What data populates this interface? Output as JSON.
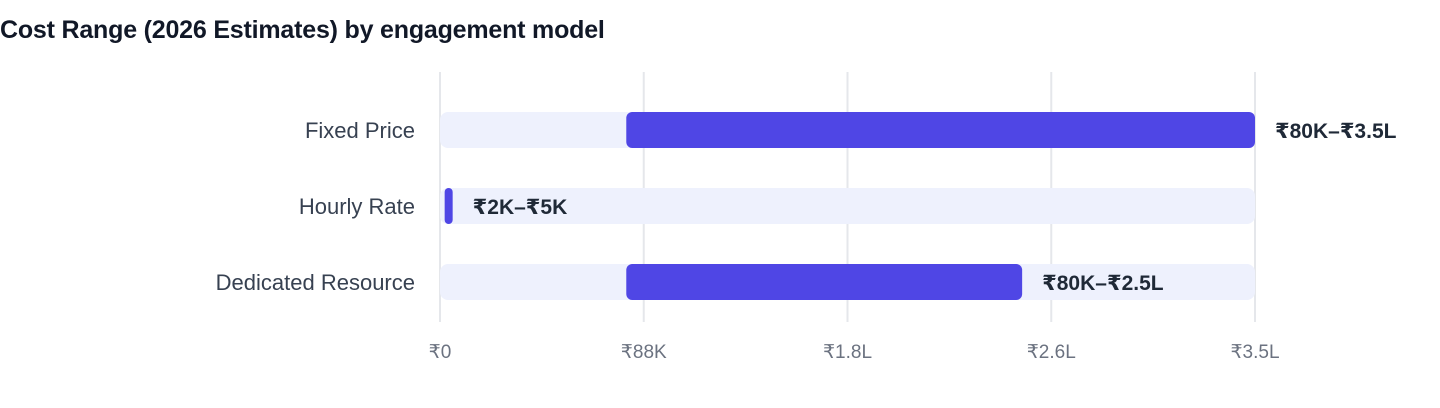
{
  "title": "Cost Range (2026 Estimates) by engagement model",
  "colors": {
    "bar": "#4f46e5",
    "track": "#eef1fd",
    "grid": "#e5e7eb",
    "title": "#111827",
    "category_text": "#374151",
    "tick_text": "#6b7280",
    "value_text": "#1f2937"
  },
  "chart_data": {
    "type": "bar",
    "orientation": "horizontal-range",
    "title": "Cost Range (2026 Estimates) by engagement model",
    "xlabel": "",
    "ylabel": "",
    "categories": [
      "Fixed Price",
      "Hourly Rate",
      "Dedicated Resource"
    ],
    "ranges": [
      {
        "min": 80000,
        "max": 350000,
        "label": "₹80K–₹3.5L"
      },
      {
        "min": 2000,
        "max": 5000,
        "label": "₹2K–₹5K"
      },
      {
        "min": 80000,
        "max": 250000,
        "label": "₹80K–₹2.5L"
      }
    ],
    "xlim": [
      0,
      350000
    ],
    "ticks": [
      0,
      87500,
      175000,
      262500,
      350000
    ],
    "tick_labels": [
      "₹0",
      "₹88K",
      "₹1.8L",
      "₹2.6L",
      "₹3.5L"
    ],
    "grid": true,
    "legend": "none"
  }
}
